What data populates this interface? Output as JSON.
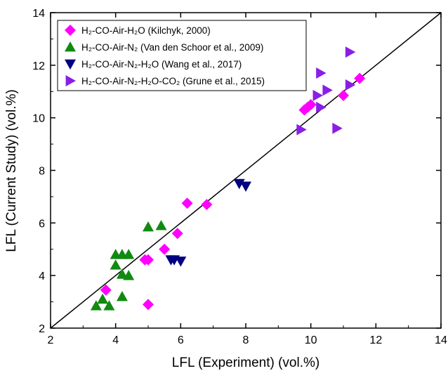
{
  "chart_data": {
    "type": "scatter",
    "x_label": "LFL (Experiment) (vol.%)",
    "y_label": "LFL (Current Study) (vol.%)",
    "xlim": [
      2,
      14
    ],
    "ylim": [
      2,
      14
    ],
    "xticks": [
      2,
      4,
      6,
      8,
      10,
      12,
      14
    ],
    "yticks": [
      2,
      4,
      6,
      8,
      10,
      12,
      14
    ],
    "series": [
      {
        "name": "H₂-CO-Air-H₂O (Kilchyk, 2000)",
        "color": "#ff00ff",
        "marker": "diamond",
        "x": [
          3.7,
          5,
          4.9,
          5,
          5.5,
          5.9,
          6.2,
          6.8,
          9.8,
          9.9,
          10,
          11,
          11.5
        ],
        "values": [
          3.45,
          2.9,
          4.6,
          4.6,
          5.0,
          5.6,
          6.75,
          6.7,
          10.3,
          10.4,
          10.5,
          10.85,
          11.5
        ]
      },
      {
        "name": "H₂-CO-Air-N₂ (Van den Schoor et al., 2009)",
        "color": "#108a10",
        "marker": "triangle-up",
        "x": [
          3.4,
          3.6,
          3.8,
          4.2,
          4,
          4,
          4.2,
          4.4,
          4.2,
          4.4,
          5,
          5.4
        ],
        "values": [
          2.85,
          3.1,
          2.85,
          3.2,
          4.4,
          4.8,
          4.8,
          4.8,
          4.05,
          4.0,
          5.85,
          5.9
        ]
      },
      {
        "name": "H₂-CO-Air-N₂-H₂O (Wang et al., 2017)",
        "color": "#000080",
        "marker": "triangle-down",
        "x": [
          5.7,
          5.8,
          6,
          7.8,
          8
        ],
        "values": [
          4.6,
          4.6,
          4.55,
          7.5,
          7.4
        ]
      },
      {
        "name": "H₂-CO-Air-N₂-H₂O-CO₂ (Grune et al., 2015)",
        "color": "#8a1ee6",
        "marker": "triangle-right",
        "x": [
          9.7,
          10.2,
          10.3,
          10.3,
          10.5,
          10.8,
          11.2,
          11.2
        ],
        "values": [
          9.55,
          10.85,
          11.7,
          10.4,
          11.05,
          9.6,
          11.25,
          12.5
        ]
      }
    ]
  }
}
